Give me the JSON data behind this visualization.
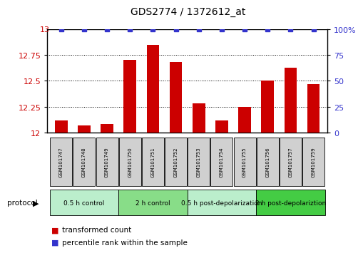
{
  "title": "GDS2774 / 1372612_at",
  "samples": [
    "GSM101747",
    "GSM101748",
    "GSM101749",
    "GSM101750",
    "GSM101751",
    "GSM101752",
    "GSM101753",
    "GSM101754",
    "GSM101755",
    "GSM101756",
    "GSM101757",
    "GSM101759"
  ],
  "bar_values": [
    12.12,
    12.07,
    12.08,
    12.7,
    12.85,
    12.68,
    12.28,
    12.12,
    12.25,
    12.5,
    12.63,
    12.47
  ],
  "percentile_values": [
    100,
    100,
    100,
    100,
    100,
    100,
    100,
    100,
    100,
    100,
    100,
    100
  ],
  "bar_color": "#cc0000",
  "percentile_color": "#3333cc",
  "ylim_left": [
    12.0,
    13.0
  ],
  "ylim_right": [
    0,
    100
  ],
  "yticks_left": [
    12.0,
    12.25,
    12.5,
    12.75
  ],
  "yticks_left_labels": [
    "12",
    "12.25",
    "12.5",
    "12.75"
  ],
  "yticks_right": [
    0,
    25,
    50,
    75,
    100
  ],
  "yticks_right_labels": [
    "0",
    "25",
    "50",
    "75",
    "100%"
  ],
  "groups": [
    {
      "label": "0.5 h control",
      "start": 0,
      "end": 3,
      "color": "#bbeecc"
    },
    {
      "label": "2 h control",
      "start": 3,
      "end": 6,
      "color": "#88dd88"
    },
    {
      "label": "0.5 h post-depolarization",
      "start": 6,
      "end": 9,
      "color": "#bbeecc"
    },
    {
      "label": "2 h post-depolariztion",
      "start": 9,
      "end": 12,
      "color": "#44cc44"
    }
  ],
  "protocol_label": "protocol",
  "legend_bar_label": "transformed count",
  "legend_dot_label": "percentile rank within the sample",
  "tick_label_color_left": "#cc0000",
  "tick_label_color_right": "#3333cc",
  "box_color": "#d0d0d0"
}
